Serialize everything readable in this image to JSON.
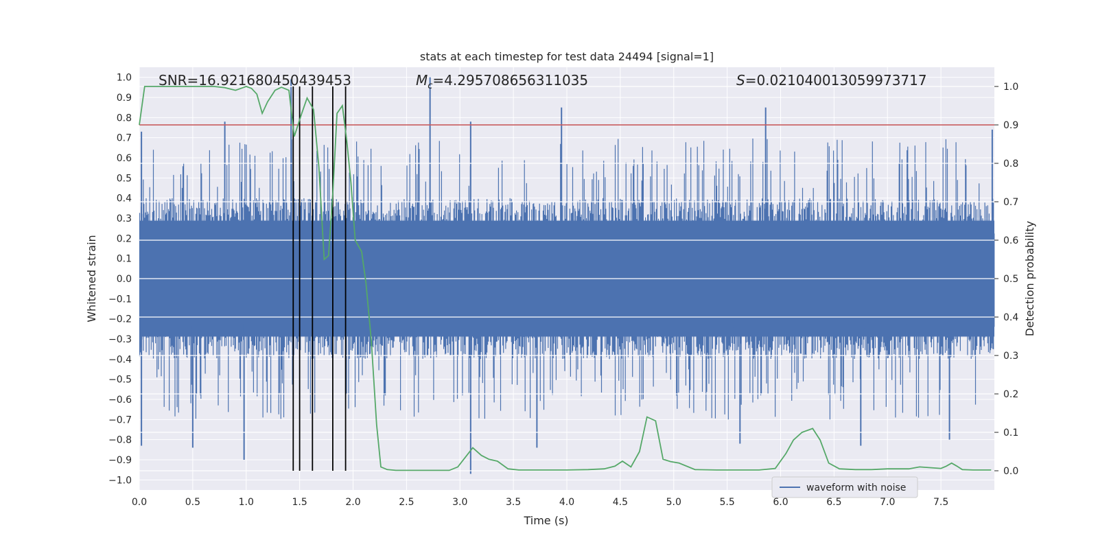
{
  "chart_data": {
    "type": "line",
    "title": "stats at each timestep for test data 24494 [signal=1]",
    "xlabel": "Time (s)",
    "ylabel": "Whitened strain",
    "ylabel_right": "Detection probability",
    "xlim": [
      0.0,
      8.0
    ],
    "ylim": [
      -1.05,
      1.05
    ],
    "ylim_right": [
      -0.05,
      1.05
    ],
    "grid": true,
    "legend_position": "lower-right",
    "x_ticks": [
      "0.0",
      "0.5",
      "1.0",
      "1.5",
      "2.0",
      "2.5",
      "3.0",
      "3.5",
      "4.0",
      "4.5",
      "5.0",
      "5.5",
      "6.0",
      "6.5",
      "7.0",
      "7.5"
    ],
    "y_ticks": [
      "1.0",
      "0.9",
      "0.8",
      "0.7",
      "0.6",
      "0.5",
      "0.4",
      "0.3",
      "0.2",
      "0.1",
      "0.0",
      "−0.1",
      "−0.2",
      "−0.3",
      "−0.4",
      "−0.5",
      "−0.6",
      "−0.7",
      "−0.8",
      "−0.9",
      "−1.0"
    ],
    "y_right_ticks": [
      "1.0",
      "0.9",
      "0.8",
      "0.7",
      "0.6",
      "0.5",
      "0.4",
      "0.3",
      "0.2",
      "0.1",
      "0.0"
    ],
    "annotations": {
      "snr": "SNR=16.921680450439453",
      "mc_symbol": "M",
      "mc_sub": "c",
      "mc_value": "=4.295708656311035",
      "s_symbol": "S",
      "s_value": "=0.021040013059973717"
    },
    "threshold": {
      "value": 0.9,
      "axis": "right",
      "color": "#c44e52"
    },
    "event_lines_x": [
      1.44,
      1.5,
      1.62,
      1.81,
      1.93
    ],
    "series": [
      {
        "name": "waveform with noise",
        "color": "#4c72b0",
        "style": "dense-noise",
        "core_envelope": [
          -0.4,
          0.4
        ],
        "spikes": [
          {
            "x": 0.02,
            "y": 0.73
          },
          {
            "x": 0.02,
            "y": -0.83
          },
          {
            "x": 0.5,
            "y": -0.84
          },
          {
            "x": 0.8,
            "y": 0.78
          },
          {
            "x": 0.98,
            "y": -0.9
          },
          {
            "x": 1.42,
            "y": 0.99
          },
          {
            "x": 2.72,
            "y": 1.0
          },
          {
            "x": 3.1,
            "y": 0.78
          },
          {
            "x": 3.1,
            "y": -0.97
          },
          {
            "x": 3.72,
            "y": -0.84
          },
          {
            "x": 3.95,
            "y": 0.85
          },
          {
            "x": 5.86,
            "y": 0.85
          },
          {
            "x": 5.62,
            "y": -0.82
          },
          {
            "x": 6.75,
            "y": -0.83
          },
          {
            "x": 7.58,
            "y": -0.8
          },
          {
            "x": 7.98,
            "y": 0.74
          }
        ]
      },
      {
        "name": "",
        "axis": "right",
        "color": "#55a868",
        "x": [
          0.0,
          0.05,
          0.1,
          0.2,
          0.3,
          0.4,
          0.5,
          0.6,
          0.7,
          0.8,
          0.9,
          0.95,
          1.0,
          1.05,
          1.1,
          1.15,
          1.2,
          1.27,
          1.33,
          1.4,
          1.45,
          1.52,
          1.57,
          1.63,
          1.68,
          1.73,
          1.77,
          1.81,
          1.85,
          1.9,
          1.94,
          1.98,
          2.02,
          2.08,
          2.12,
          2.17,
          2.22,
          2.26,
          2.32,
          2.4,
          2.5,
          2.7,
          2.9,
          2.98,
          3.05,
          3.12,
          3.2,
          3.27,
          3.35,
          3.45,
          3.55,
          3.75,
          4.0,
          4.2,
          4.35,
          4.45,
          4.52,
          4.6,
          4.68,
          4.75,
          4.83,
          4.9,
          4.97,
          5.05,
          5.2,
          5.4,
          5.6,
          5.8,
          5.95,
          6.05,
          6.12,
          6.2,
          6.3,
          6.37,
          6.45,
          6.55,
          6.7,
          6.85,
          7.0,
          7.2,
          7.3,
          7.4,
          7.5,
          7.55,
          7.6,
          7.65,
          7.7,
          7.8,
          7.9,
          7.97
        ],
        "y": [
          0.9,
          1.0,
          1.0,
          1.0,
          1.0,
          1.0,
          1.0,
          1.0,
          1.0,
          0.997,
          0.99,
          0.995,
          1.0,
          0.995,
          0.98,
          0.93,
          0.96,
          0.99,
          0.998,
          0.99,
          0.87,
          0.93,
          0.97,
          0.94,
          0.79,
          0.55,
          0.56,
          0.72,
          0.93,
          0.95,
          0.86,
          0.75,
          0.6,
          0.57,
          0.49,
          0.34,
          0.12,
          0.01,
          0.003,
          0.001,
          0.001,
          0.001,
          0.001,
          0.01,
          0.035,
          0.06,
          0.04,
          0.03,
          0.025,
          0.005,
          0.002,
          0.002,
          0.002,
          0.003,
          0.005,
          0.012,
          0.025,
          0.01,
          0.05,
          0.14,
          0.13,
          0.03,
          0.024,
          0.02,
          0.003,
          0.002,
          0.002,
          0.002,
          0.006,
          0.045,
          0.08,
          0.1,
          0.11,
          0.08,
          0.02,
          0.005,
          0.003,
          0.003,
          0.005,
          0.005,
          0.01,
          0.008,
          0.006,
          0.012,
          0.02,
          0.012,
          0.003,
          0.002,
          0.002,
          0.002
        ]
      }
    ]
  }
}
